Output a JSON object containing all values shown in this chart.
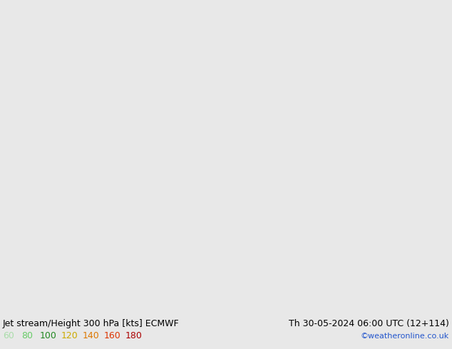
{
  "title_left": "Jet stream/Height 300 hPa [kts] ECMWF",
  "title_right": "Th 30-05-2024 06:00 UTC (12+114)",
  "credit": "©weatheronline.co.uk",
  "legend_values": [
    60,
    80,
    100,
    120,
    140,
    160,
    180
  ],
  "legend_colors": [
    "#aaf0aa",
    "#80d880",
    "#40b840",
    "#d4c020",
    "#e09020",
    "#d04020",
    "#b01010"
  ],
  "bg_color": "#e8e8e8",
  "contour_color": "#000000",
  "title_fontsize": 9,
  "legend_fontsize": 9,
  "map_extent": [
    -25,
    30,
    42,
    72
  ],
  "green_light": "#c8f0c0",
  "green_medium": "#a0e090",
  "green_dark": "#60c860"
}
